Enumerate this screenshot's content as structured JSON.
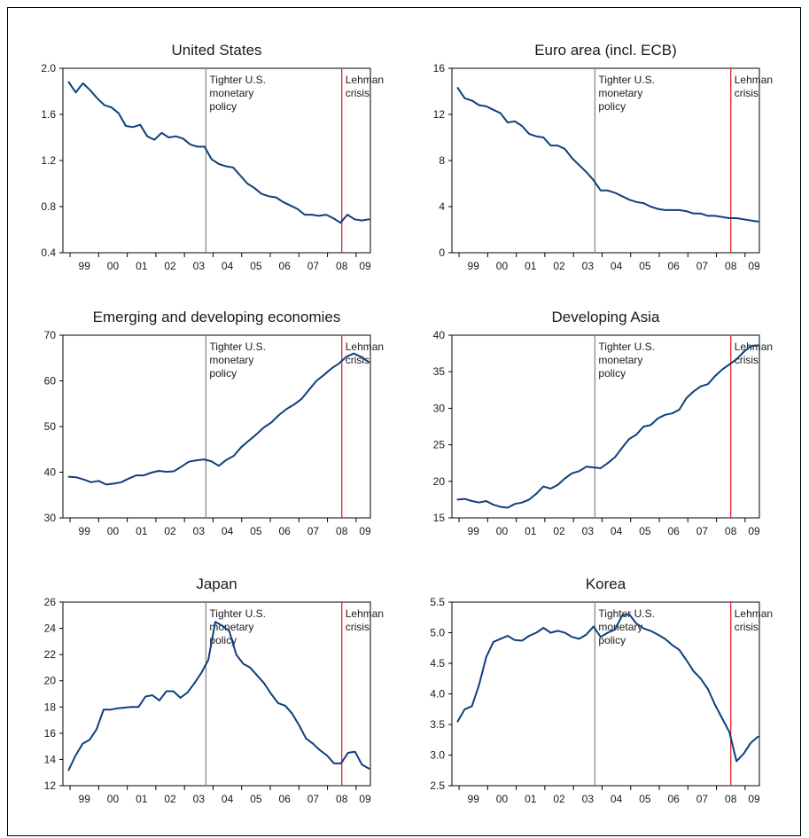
{
  "colors": {
    "series": "#0e3f7c",
    "policy_line": "#8a8a8a",
    "lehman_line": "#e8262b"
  },
  "chart_data": [
    {
      "type": "line",
      "title": "United States",
      "xticks": [
        "99",
        "00",
        "01",
        "02",
        "03",
        "04",
        "05",
        "06",
        "07",
        "08",
        "09"
      ],
      "ylim": [
        0.4,
        2.0
      ],
      "yticks": [
        "0.4",
        "0.8",
        "1.2",
        "1.6",
        "2.0"
      ],
      "markers": [
        {
          "x": 2003.75,
          "label": [
            "Tighter U.S.",
            "monetary",
            "policy"
          ],
          "color_key": "policy_line"
        },
        {
          "x": 2008.5,
          "label": [
            "Lehman",
            "crisis"
          ],
          "color_key": "lehman_line"
        }
      ],
      "series": [
        {
          "values": [
            1.88,
            1.79,
            1.87,
            1.81,
            1.74,
            1.68,
            1.66,
            1.61,
            1.5,
            1.49,
            1.51,
            1.41,
            1.38,
            1.44,
            1.4,
            1.41,
            1.39,
            1.34,
            1.32,
            1.32,
            1.21,
            1.17,
            1.15,
            1.14,
            1.07,
            1.0,
            0.96,
            0.91,
            0.89,
            0.88,
            0.84,
            0.81,
            0.78,
            0.73,
            0.73,
            0.72,
            0.73,
            0.7,
            0.66,
            0.73,
            0.69,
            0.68,
            0.69
          ]
        }
      ]
    },
    {
      "type": "line",
      "title": "Euro area (incl. ECB)",
      "xticks": [
        "99",
        "00",
        "01",
        "02",
        "03",
        "04",
        "05",
        "06",
        "07",
        "08",
        "09"
      ],
      "ylim": [
        0,
        16
      ],
      "yticks": [
        "0",
        "4",
        "8",
        "12",
        "16"
      ],
      "markers": [
        {
          "x": 2003.75,
          "label": [
            "Tighter U.S.",
            "monetary",
            "policy"
          ],
          "color_key": "policy_line"
        },
        {
          "x": 2008.5,
          "label": [
            "Lehman",
            "crisis"
          ],
          "color_key": "lehman_line"
        }
      ],
      "series": [
        {
          "values": [
            14.3,
            13.4,
            13.2,
            12.8,
            12.7,
            12.4,
            12.1,
            11.3,
            11.4,
            11.0,
            10.3,
            10.1,
            10.0,
            9.3,
            9.3,
            9.0,
            8.2,
            7.6,
            7.0,
            6.3,
            5.4,
            5.4,
            5.2,
            4.9,
            4.6,
            4.4,
            4.3,
            4.0,
            3.8,
            3.7,
            3.7,
            3.7,
            3.6,
            3.4,
            3.4,
            3.2,
            3.2,
            3.1,
            3.0,
            3.0,
            2.9,
            2.8,
            2.7
          ]
        }
      ]
    },
    {
      "type": "line",
      "title": "Emerging and developing economies",
      "xticks": [
        "99",
        "00",
        "01",
        "02",
        "03",
        "04",
        "05",
        "06",
        "07",
        "08",
        "09"
      ],
      "ylim": [
        30,
        70
      ],
      "yticks": [
        "30",
        "40",
        "50",
        "60",
        "70"
      ],
      "markers": [
        {
          "x": 2003.75,
          "label": [
            "Tighter U.S.",
            "monetary",
            "policy"
          ],
          "color_key": "policy_line"
        },
        {
          "x": 2008.5,
          "label": [
            "Lehman",
            "crisis"
          ],
          "color_key": "lehman_line"
        }
      ],
      "series": [
        {
          "values": [
            39.0,
            38.9,
            38.4,
            37.8,
            38.1,
            37.3,
            37.5,
            37.8,
            38.6,
            39.3,
            39.3,
            39.9,
            40.3,
            40.1,
            40.2,
            41.2,
            42.3,
            42.6,
            42.8,
            42.4,
            41.4,
            42.7,
            43.6,
            45.5,
            46.9,
            48.3,
            49.8,
            50.9,
            52.5,
            53.8,
            54.8,
            56.0,
            58.0,
            60.0,
            61.3,
            62.7,
            63.8,
            65.3,
            66.0,
            65.2,
            64.1
          ]
        }
      ]
    },
    {
      "type": "line",
      "title": "Developing Asia",
      "xticks": [
        "99",
        "00",
        "01",
        "02",
        "03",
        "04",
        "05",
        "06",
        "07",
        "08",
        "09"
      ],
      "ylim": [
        15,
        40
      ],
      "yticks": [
        "15",
        "20",
        "25",
        "30",
        "35",
        "40"
      ],
      "markers": [
        {
          "x": 2003.75,
          "label": [
            "Tighter U.S.",
            "monetary",
            "policy"
          ],
          "color_key": "policy_line"
        },
        {
          "x": 2008.5,
          "label": [
            "Lehman",
            "crisis"
          ],
          "color_key": "lehman_line"
        }
      ],
      "series": [
        {
          "values": [
            17.5,
            17.6,
            17.3,
            17.1,
            17.3,
            16.8,
            16.5,
            16.4,
            16.9,
            17.1,
            17.5,
            18.3,
            19.3,
            19.0,
            19.5,
            20.4,
            21.1,
            21.4,
            22.0,
            21.9,
            21.8,
            22.5,
            23.3,
            24.6,
            25.8,
            26.4,
            27.5,
            27.7,
            28.6,
            29.1,
            29.3,
            29.8,
            31.4,
            32.3,
            33.0,
            33.3,
            34.4,
            35.3,
            36.0,
            36.7,
            37.7,
            38.5,
            38.6
          ]
        }
      ]
    },
    {
      "type": "line",
      "title": "Japan",
      "xticks": [
        "99",
        "00",
        "01",
        "02",
        "03",
        "04",
        "05",
        "06",
        "07",
        "08",
        "09"
      ],
      "ylim": [
        12,
        26
      ],
      "yticks": [
        "12",
        "14",
        "16",
        "18",
        "20",
        "22",
        "24",
        "26"
      ],
      "markers": [
        {
          "x": 2003.75,
          "label": [
            "Tighter U.S.",
            "monetary",
            "policy"
          ],
          "color_key": "policy_line"
        },
        {
          "x": 2008.5,
          "label": [
            "Lehman",
            "crisis"
          ],
          "color_key": "lehman_line"
        }
      ],
      "series": [
        {
          "values": [
            13.2,
            14.3,
            15.2,
            15.5,
            16.3,
            17.8,
            17.8,
            17.9,
            17.95,
            18.0,
            18.0,
            18.8,
            18.9,
            18.5,
            19.2,
            19.2,
            18.7,
            19.1,
            19.8,
            20.6,
            21.6,
            24.5,
            24.2,
            23.8,
            22.0,
            21.3,
            21.0,
            20.4,
            19.8,
            19.0,
            18.3,
            18.1,
            17.5,
            16.6,
            15.6,
            15.2,
            14.7,
            14.3,
            13.7,
            13.7,
            14.5,
            14.6,
            13.6,
            13.3
          ]
        }
      ]
    },
    {
      "type": "line",
      "title": "Korea",
      "xticks": [
        "99",
        "00",
        "01",
        "02",
        "03",
        "04",
        "05",
        "06",
        "07",
        "08",
        "09"
      ],
      "ylim": [
        2.5,
        5.5
      ],
      "yticks": [
        "2.5",
        "3.0",
        "3.5",
        "4.0",
        "4.5",
        "5.0",
        "5.5"
      ],
      "markers": [
        {
          "x": 2003.75,
          "label": [
            "Tighter U.S.",
            "monetary",
            "policy"
          ],
          "color_key": "policy_line"
        },
        {
          "x": 2008.5,
          "label": [
            "Lehman",
            "crisis"
          ],
          "color_key": "lehman_line"
        }
      ],
      "series": [
        {
          "values": [
            3.55,
            3.75,
            3.8,
            4.15,
            4.6,
            4.85,
            4.9,
            4.95,
            4.88,
            4.87,
            4.95,
            5.0,
            5.08,
            5.0,
            5.03,
            5.0,
            4.93,
            4.9,
            4.97,
            5.1,
            4.93,
            5.0,
            5.05,
            5.28,
            5.3,
            5.15,
            5.07,
            5.03,
            4.97,
            4.9,
            4.8,
            4.72,
            4.55,
            4.37,
            4.25,
            4.08,
            3.82,
            3.6,
            3.38,
            2.9,
            3.02,
            3.2,
            3.3
          ]
        }
      ]
    }
  ]
}
